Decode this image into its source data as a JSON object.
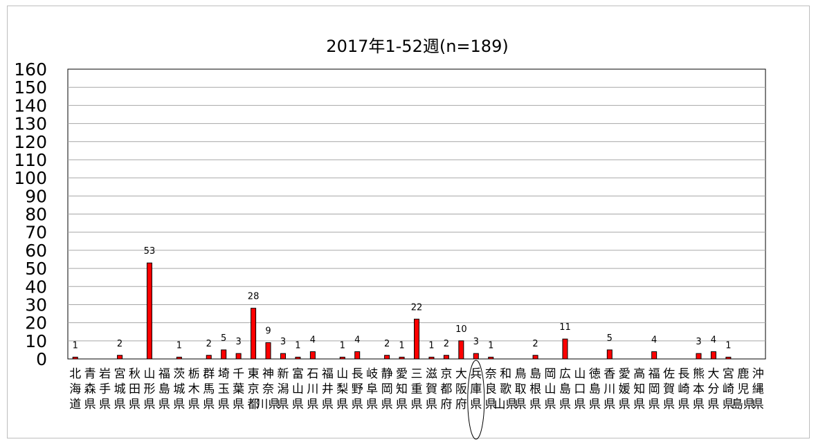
{
  "chart_data": {
    "type": "bar",
    "title": "2017年1-52週(n=189)",
    "xlabel": "",
    "ylabel": "",
    "ylim": [
      0,
      160
    ],
    "yticks": [
      0,
      10,
      20,
      30,
      40,
      50,
      60,
      70,
      80,
      90,
      100,
      110,
      120,
      130,
      140,
      150,
      160
    ],
    "grid": true,
    "legend": "none",
    "bar_color": "#ff0000",
    "bar_edge_color": "#000000",
    "highlight_category": "兵庫県",
    "categories": [
      "北海道",
      "青森県",
      "岩手県",
      "宮城県",
      "秋田県",
      "山形県",
      "福島県",
      "茨城県",
      "栃木県",
      "群馬県",
      "埼玉県",
      "千葉県",
      "東京都",
      "神奈川県",
      "新潟県",
      "富山県",
      "石川県",
      "福井県",
      "山梨県",
      "長野県",
      "岐阜県",
      "静岡県",
      "愛知県",
      "三重県",
      "滋賀県",
      "京都府",
      "大阪府",
      "兵庫県",
      "奈良県",
      "和歌山県",
      "鳥取県",
      "島根県",
      "岡山県",
      "広島県",
      "山口県",
      "徳島県",
      "香川県",
      "愛媛県",
      "高知県",
      "福岡県",
      "佐賀県",
      "長崎県",
      "熊本県",
      "大分県",
      "宮崎県",
      "鹿児島県",
      "沖縄県"
    ],
    "values": [
      1,
      0,
      0,
      2,
      0,
      53,
      0,
      1,
      0,
      2,
      5,
      3,
      28,
      9,
      3,
      1,
      4,
      0,
      1,
      4,
      0,
      2,
      1,
      22,
      1,
      2,
      10,
      3,
      1,
      0,
      0,
      2,
      0,
      11,
      0,
      0,
      5,
      0,
      0,
      4,
      0,
      0,
      3,
      4,
      1,
      0,
      0
    ],
    "data_labels": [
      "1",
      "",
      "",
      "2",
      "",
      "53",
      "",
      "1",
      "",
      "2",
      "5",
      "3",
      "28",
      "9",
      "3",
      "1",
      "4",
      "",
      "1",
      "4",
      "",
      "2",
      "1",
      "22",
      "1",
      "2",
      "10",
      "3",
      "1",
      "",
      "",
      "2",
      "",
      "11",
      "",
      "",
      "5",
      "",
      "",
      "4",
      "",
      "",
      "3",
      "4",
      "1",
      "",
      ""
    ]
  }
}
